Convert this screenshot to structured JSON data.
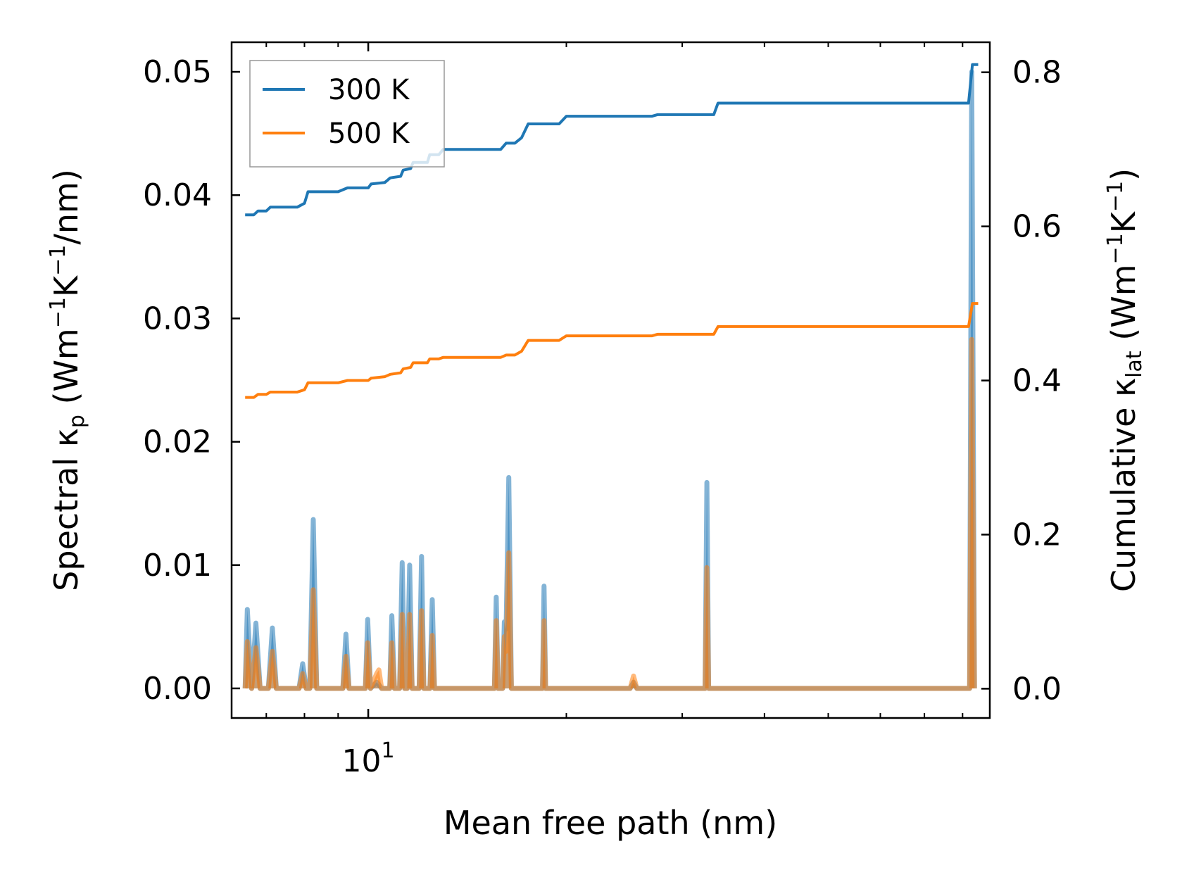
{
  "chart_data": {
    "type": "line",
    "xlabel": "Mean free path (nm)",
    "ylabel_left": {
      "pre": "Spectral κ",
      "sub": "p",
      "mid1": " (Wm",
      "sup1": "−1",
      "mid2": "K",
      "sup2": "−1",
      "post": "/nm)"
    },
    "ylabel_right": {
      "pre": "Cumulative κ",
      "sub": "lat",
      "mid1": " (Wm",
      "sup1": "−1",
      "mid2": "K",
      "sup2": "−1",
      "post": ")"
    },
    "xscale": "log",
    "xlim": [
      6.2,
      88
    ],
    "x_tick_label": {
      "base": "10",
      "exp": "1",
      "value": 10
    },
    "ylim_left": [
      -0.0024,
      0.0524
    ],
    "ylim_right": [
      -0.038,
      0.839
    ],
    "yticks_left": [
      "0.00",
      "0.01",
      "0.02",
      "0.03",
      "0.04",
      "0.05"
    ],
    "yticks_right": [
      "0.0",
      "0.2",
      "0.4",
      "0.6",
      "0.8"
    ],
    "legend": {
      "position": "top-left",
      "entries": [
        {
          "label": "300 K",
          "color": "#1f77b4"
        },
        {
          "label": "500 K",
          "color": "#ff7f0e"
        }
      ]
    },
    "series_cumulative": [
      {
        "name": "300 K",
        "color": "#1f77b4",
        "axis": "right",
        "points": [
          [
            6.5,
            0.615
          ],
          [
            6.7,
            0.615
          ],
          [
            6.8,
            0.62
          ],
          [
            7.0,
            0.62
          ],
          [
            7.1,
            0.625
          ],
          [
            7.8,
            0.625
          ],
          [
            8.0,
            0.63
          ],
          [
            8.1,
            0.645
          ],
          [
            9.0,
            0.645
          ],
          [
            9.3,
            0.65
          ],
          [
            10.0,
            0.65
          ],
          [
            10.1,
            0.655
          ],
          [
            10.6,
            0.657
          ],
          [
            10.8,
            0.663
          ],
          [
            11.2,
            0.665
          ],
          [
            11.3,
            0.673
          ],
          [
            11.6,
            0.675
          ],
          [
            11.7,
            0.683
          ],
          [
            12.3,
            0.683
          ],
          [
            12.4,
            0.693
          ],
          [
            12.8,
            0.693
          ],
          [
            13.0,
            0.7
          ],
          [
            15.9,
            0.7
          ],
          [
            16.2,
            0.708
          ],
          [
            16.7,
            0.708
          ],
          [
            17.1,
            0.715
          ],
          [
            17.5,
            0.733
          ],
          [
            19.5,
            0.733
          ],
          [
            20.0,
            0.743
          ],
          [
            27.0,
            0.743
          ],
          [
            27.5,
            0.745
          ],
          [
            33.5,
            0.745
          ],
          [
            34.0,
            0.76
          ],
          [
            81.7,
            0.76
          ],
          [
            82.8,
            0.81
          ],
          [
            84.5,
            0.81
          ]
        ]
      },
      {
        "name": "500 K",
        "color": "#ff7f0e",
        "axis": "right",
        "points": [
          [
            6.5,
            0.378
          ],
          [
            6.7,
            0.378
          ],
          [
            6.8,
            0.382
          ],
          [
            7.0,
            0.382
          ],
          [
            7.1,
            0.385
          ],
          [
            7.8,
            0.385
          ],
          [
            8.0,
            0.388
          ],
          [
            8.1,
            0.397
          ],
          [
            9.0,
            0.397
          ],
          [
            9.3,
            0.4
          ],
          [
            10.0,
            0.4
          ],
          [
            10.1,
            0.403
          ],
          [
            10.6,
            0.405
          ],
          [
            10.8,
            0.408
          ],
          [
            11.2,
            0.41
          ],
          [
            11.3,
            0.415
          ],
          [
            11.6,
            0.417
          ],
          [
            11.7,
            0.423
          ],
          [
            12.3,
            0.423
          ],
          [
            12.4,
            0.428
          ],
          [
            12.8,
            0.428
          ],
          [
            13.0,
            0.43
          ],
          [
            15.9,
            0.43
          ],
          [
            16.2,
            0.433
          ],
          [
            16.7,
            0.433
          ],
          [
            17.1,
            0.438
          ],
          [
            17.5,
            0.452
          ],
          [
            19.5,
            0.452
          ],
          [
            20.0,
            0.458
          ],
          [
            27.0,
            0.458
          ],
          [
            27.5,
            0.46
          ],
          [
            33.5,
            0.46
          ],
          [
            34.0,
            0.47
          ],
          [
            81.7,
            0.47
          ],
          [
            82.8,
            0.5
          ],
          [
            84.5,
            0.5
          ]
        ]
      }
    ],
    "series_spectral": [
      {
        "name": "300 K",
        "color": "#1f77b4",
        "axis": "left",
        "points": [
          [
            6.5,
            0
          ],
          [
            6.55,
            0.0064
          ],
          [
            6.65,
            0
          ],
          [
            6.75,
            0.0053
          ],
          [
            6.85,
            0
          ],
          [
            7.05,
            0
          ],
          [
            7.15,
            0.0049
          ],
          [
            7.25,
            0
          ],
          [
            7.85,
            0
          ],
          [
            7.95,
            0.002
          ],
          [
            8.05,
            0
          ],
          [
            8.15,
            0
          ],
          [
            8.25,
            0.0137
          ],
          [
            8.35,
            0
          ],
          [
            9.15,
            0
          ],
          [
            9.25,
            0.0044
          ],
          [
            9.35,
            0
          ],
          [
            9.9,
            0
          ],
          [
            9.98,
            0.0056
          ],
          [
            10.08,
            0
          ],
          [
            10.3,
            0.0005
          ],
          [
            10.38,
            0.0003
          ],
          [
            10.48,
            0
          ],
          [
            10.78,
            0
          ],
          [
            10.86,
            0.0059
          ],
          [
            10.96,
            0
          ],
          [
            11.16,
            0
          ],
          [
            11.26,
            0.0102
          ],
          [
            11.36,
            0
          ],
          [
            11.46,
            0
          ],
          [
            11.56,
            0.01
          ],
          [
            11.66,
            0
          ],
          [
            11.95,
            0
          ],
          [
            12.05,
            0.0107
          ],
          [
            12.15,
            0
          ],
          [
            12.41,
            0
          ],
          [
            12.51,
            0.0072
          ],
          [
            12.61,
            0
          ],
          [
            15.55,
            0
          ],
          [
            15.65,
            0.0074
          ],
          [
            15.75,
            0
          ],
          [
            16.0,
            0
          ],
          [
            16.1,
            0.0054
          ],
          [
            16.2,
            0.0048
          ],
          [
            16.35,
            0.0171
          ],
          [
            16.5,
            0
          ],
          [
            18.4,
            0
          ],
          [
            18.5,
            0.0083
          ],
          [
            18.6,
            0
          ],
          [
            25.0,
            0
          ],
          [
            25.3,
            0.0005
          ],
          [
            25.6,
            0
          ],
          [
            32.5,
            0
          ],
          [
            32.7,
            0.0167
          ],
          [
            32.9,
            0
          ],
          [
            82.0,
            0
          ],
          [
            82.6,
            0.05
          ],
          [
            83.4,
            0
          ]
        ]
      },
      {
        "name": "500 K",
        "color": "#ff7f0e",
        "axis": "left",
        "points": [
          [
            6.5,
            0
          ],
          [
            6.55,
            0.0038
          ],
          [
            6.65,
            0
          ],
          [
            6.75,
            0.0033
          ],
          [
            6.85,
            0
          ],
          [
            7.05,
            0
          ],
          [
            7.15,
            0.003
          ],
          [
            7.25,
            0
          ],
          [
            7.85,
            0
          ],
          [
            7.95,
            0.0012
          ],
          [
            8.05,
            0
          ],
          [
            8.15,
            0
          ],
          [
            8.25,
            0.008
          ],
          [
            8.35,
            0
          ],
          [
            9.15,
            0
          ],
          [
            9.25,
            0.0026
          ],
          [
            9.35,
            0
          ],
          [
            9.9,
            0
          ],
          [
            9.98,
            0.0037
          ],
          [
            10.08,
            0
          ],
          [
            10.3,
            0.0012
          ],
          [
            10.38,
            0.0015
          ],
          [
            10.48,
            0
          ],
          [
            10.78,
            0
          ],
          [
            10.86,
            0.0037
          ],
          [
            10.96,
            0
          ],
          [
            11.16,
            0
          ],
          [
            11.26,
            0.006
          ],
          [
            11.36,
            0
          ],
          [
            11.46,
            0
          ],
          [
            11.56,
            0.006
          ],
          [
            11.66,
            0
          ],
          [
            11.95,
            0
          ],
          [
            12.05,
            0.0063
          ],
          [
            12.15,
            0
          ],
          [
            12.41,
            0
          ],
          [
            12.51,
            0.0043
          ],
          [
            12.61,
            0
          ],
          [
            15.55,
            0
          ],
          [
            15.65,
            0.0055
          ],
          [
            15.75,
            0
          ],
          [
            16.0,
            0
          ],
          [
            16.1,
            0.0042
          ],
          [
            16.2,
            0.003
          ],
          [
            16.35,
            0.011
          ],
          [
            16.5,
            0
          ],
          [
            18.4,
            0
          ],
          [
            18.5,
            0.0055
          ],
          [
            18.6,
            0
          ],
          [
            25.0,
            0
          ],
          [
            25.3,
            0.001
          ],
          [
            25.6,
            0
          ],
          [
            32.5,
            0
          ],
          [
            32.7,
            0.0098
          ],
          [
            32.9,
            0
          ],
          [
            82.0,
            0
          ],
          [
            82.6,
            0.0283
          ],
          [
            83.4,
            0
          ]
        ]
      }
    ]
  }
}
